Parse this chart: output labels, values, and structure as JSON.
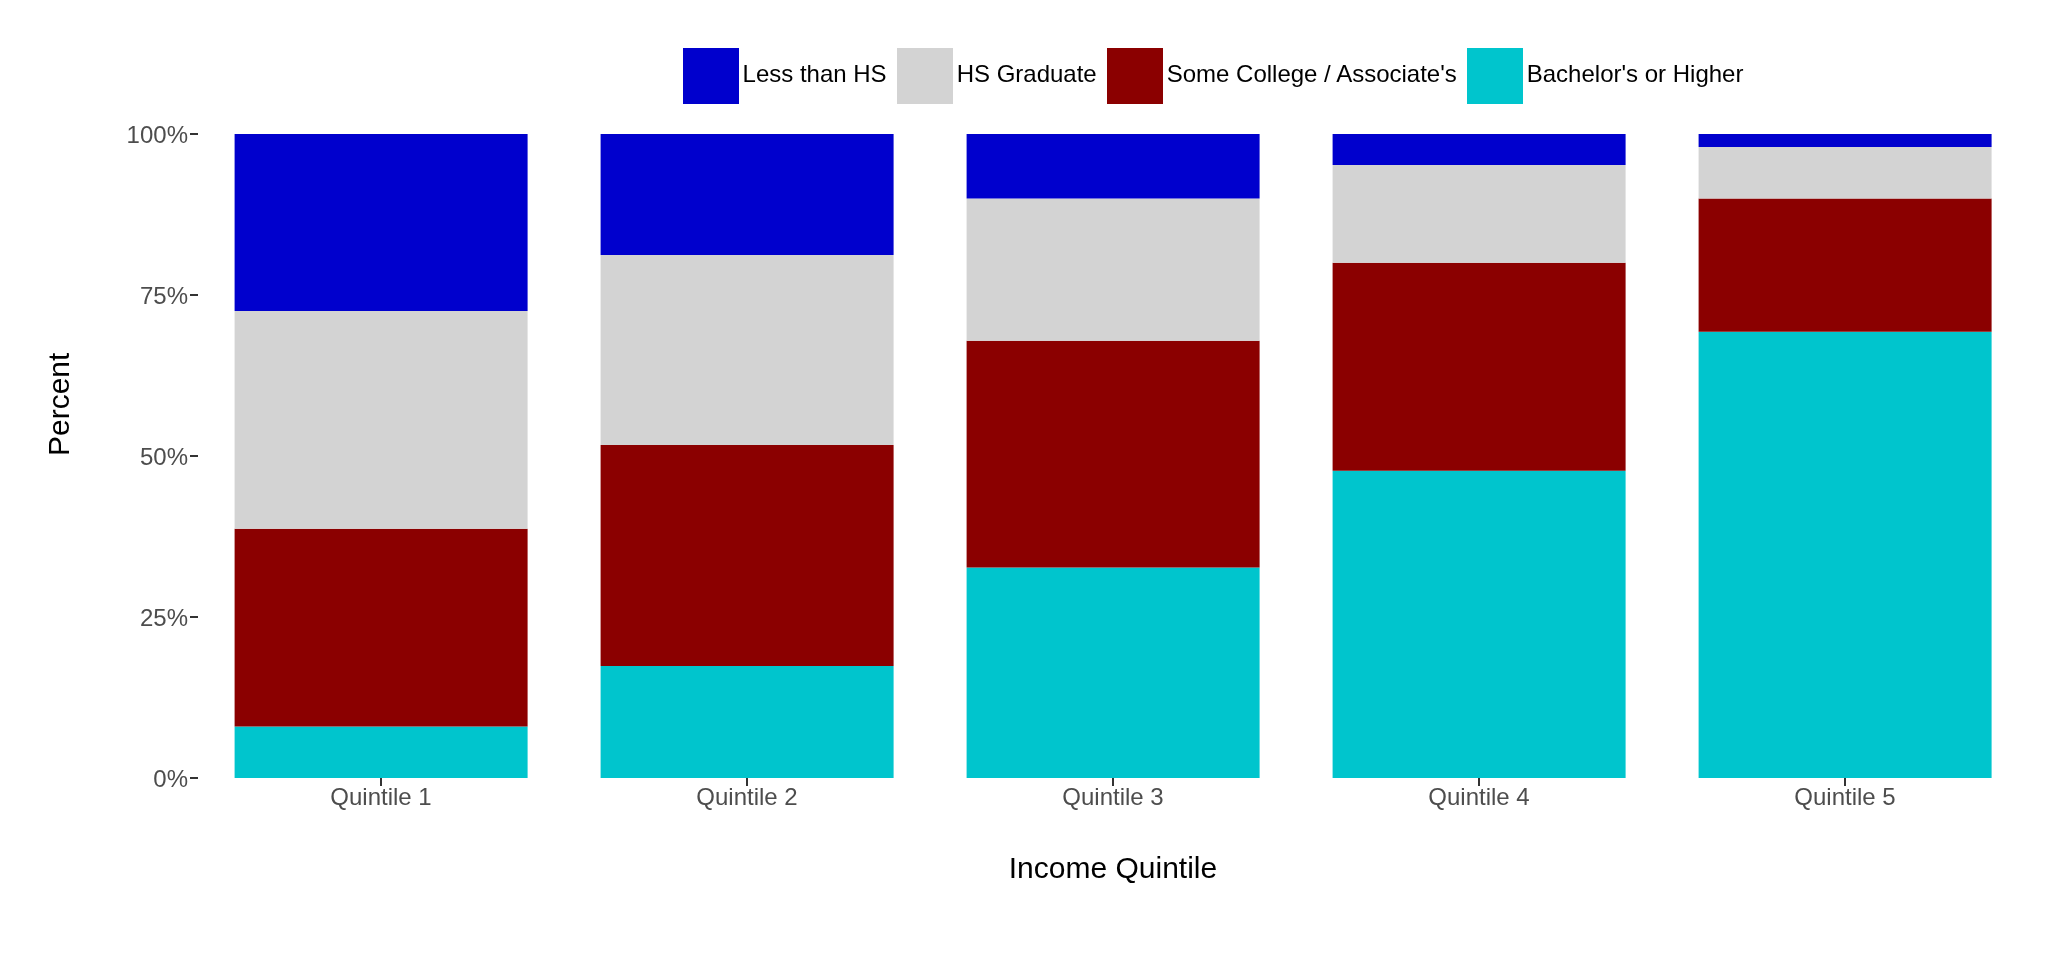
{
  "chart_data": {
    "type": "bar",
    "xlabel": "Income Quintile",
    "ylabel": "Percent",
    "categories": [
      "Quintile 1",
      "Quintile 2",
      "Quintile 3",
      "Quintile 4",
      "Quintile 5"
    ],
    "stacked": true,
    "legend": "top",
    "grid": false,
    "ylim": [
      0,
      100
    ],
    "yticks": [
      {
        "value": 0,
        "label": "0%"
      },
      {
        "value": 25,
        "label": "25%"
      },
      {
        "value": 50,
        "label": "50%"
      },
      {
        "value": 75,
        "label": "75%"
      },
      {
        "value": 100,
        "label": "100%"
      }
    ],
    "series": [
      {
        "name": "Bachelor's or Higher",
        "color": "#00c5cd",
        "values": [
          8.0,
          17.4,
          32.7,
          47.7,
          69.3
        ]
      },
      {
        "name": "Some College / Associate's",
        "color": "#8b0000",
        "values": [
          30.7,
          34.3,
          35.2,
          32.3,
          20.7
        ]
      },
      {
        "name": "HS Graduate",
        "color": "#d3d3d3",
        "values": [
          33.8,
          29.5,
          22.1,
          15.2,
          8.0
        ]
      },
      {
        "name": "Less than HS",
        "color": "#0000cd",
        "values": [
          27.5,
          18.8,
          10.0,
          4.8,
          2.0
        ]
      }
    ]
  }
}
